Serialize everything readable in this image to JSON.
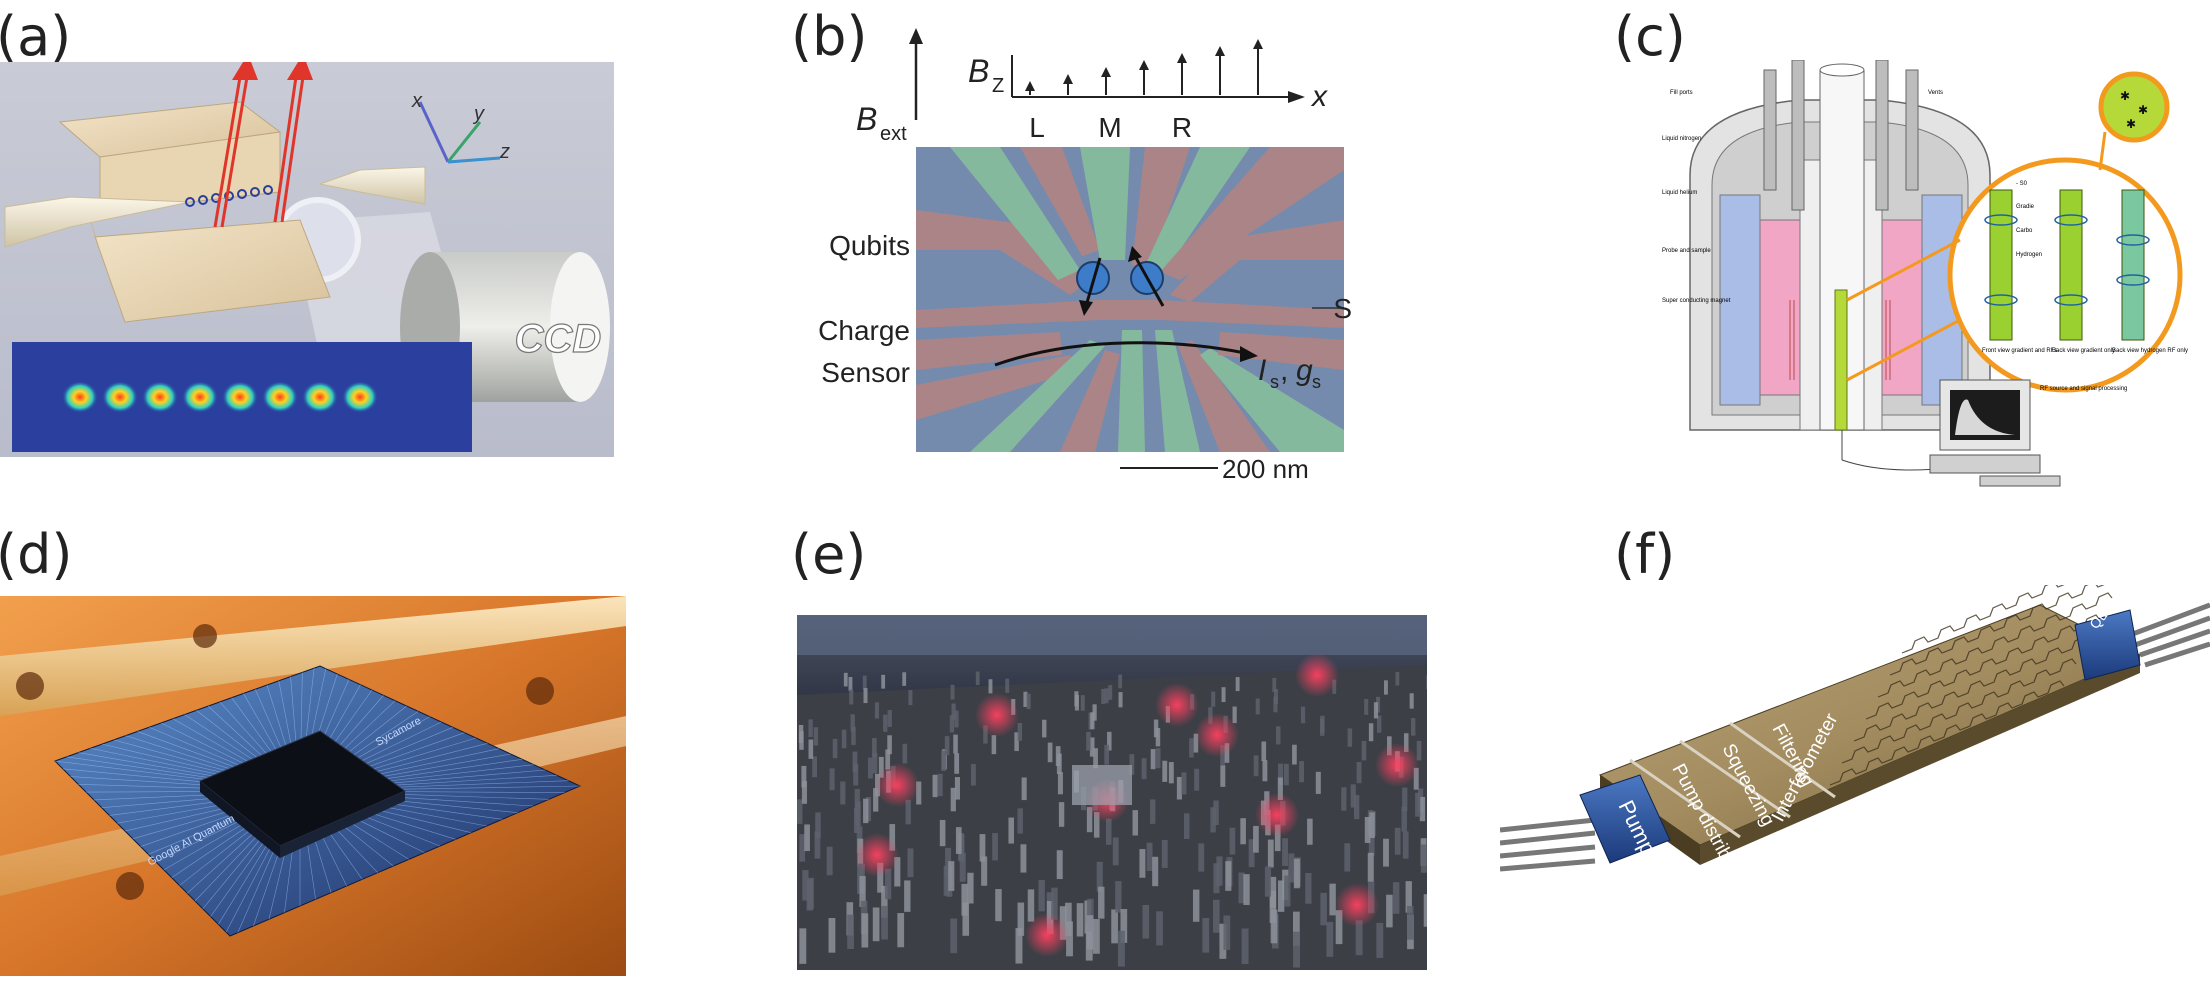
{
  "panels": {
    "a": {
      "label": "(a)",
      "camera_text": "CCD",
      "axes": {
        "x": "x",
        "y": "y",
        "z": "z"
      },
      "ion_count": 8
    },
    "b": {
      "label": "(b)",
      "b_ext": "B",
      "b_ext_sub": "ext",
      "b_z": "B",
      "b_z_sub": "Z",
      "x_axis": "x",
      "positions": [
        "L",
        "M",
        "R"
      ],
      "qubits": "Qubits",
      "charge_sensor_line1": "Charge",
      "charge_sensor_line2": "Sensor",
      "s_label": "S",
      "current": "I",
      "current_sub": "s",
      "conductance": "g",
      "conductance_sub": "s",
      "scalebar": "200 nm"
    },
    "c": {
      "label": "(c)",
      "callouts": {
        "fill_ports": "Fill ports",
        "vents": "Vents",
        "liquid_nitrogen": "Liquid nitrogen",
        "liquid_helium": "Liquid helium",
        "probe": "Probe and sample",
        "magnet": "Super conducting magnet",
        "s0": "- S0",
        "gradient": "Gradie",
        "carbon": "Carbo",
        "hydrogen": "Hydrogen",
        "front_view": "Front view gradient and RFs",
        "back_view_gradient": "Back view gradient only",
        "back_view_hydrogen": "Back view hydrogen RF only",
        "rf_source": "RF source and signal processing"
      }
    },
    "d": {
      "label": "(d)",
      "chip_text_1": "Google AI Quantum",
      "chip_text_2": "Sycamore"
    },
    "e": {
      "label": "(e)"
    },
    "f": {
      "label": "(f)",
      "stages": [
        "Pump I/O",
        "Pump distribution",
        "Squeezing",
        "Filtering",
        "Interferometer",
        "Quantum output"
      ]
    }
  },
  "colors": {
    "ion_bg": "#2a3f9a",
    "sem_green": "#8fc9a8",
    "sem_red": "#b98a8a",
    "sem_blue": "#6f8bb2",
    "cryostat_pink": "#f2a6c6",
    "cryostat_blue": "#a9bde6",
    "callout_orange": "#f39a1e",
    "coil_green": "#9ad131",
    "chip_copper": "#d7762a"
  }
}
